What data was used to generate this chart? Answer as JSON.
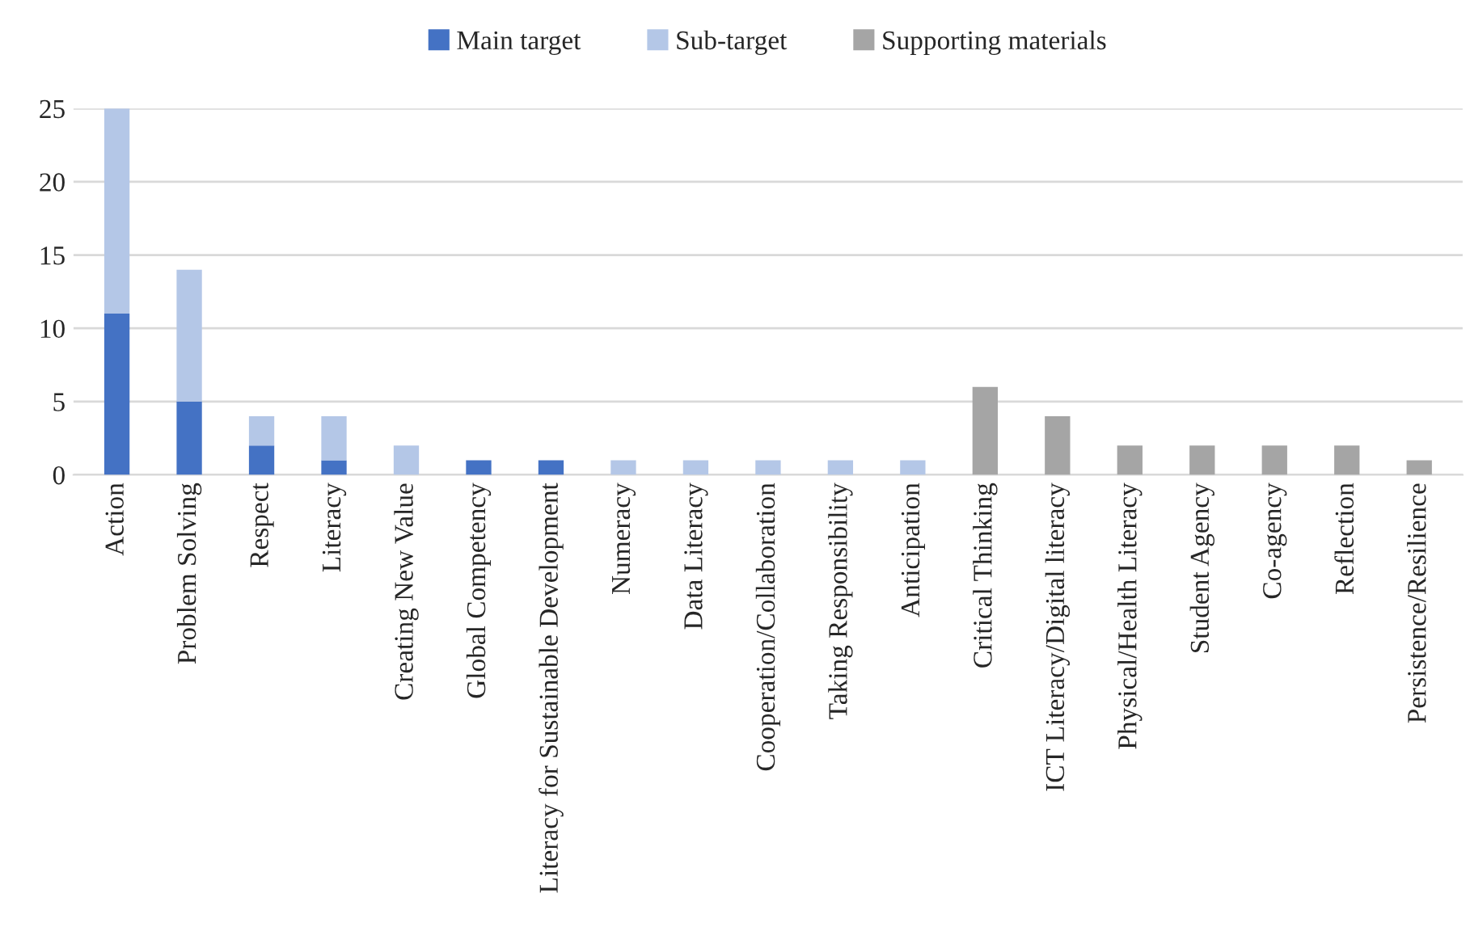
{
  "chart_data": {
    "type": "bar",
    "stacked": true,
    "categories": [
      "Action",
      "Problem Solving",
      "Respect",
      "Literacy",
      "Creating New Value",
      "Global Competency",
      "Literacy for Sustainable Development",
      "Numeracy",
      "Data Literacy",
      "Cooperation/Collaboration",
      "Taking Responsibility",
      "Anticipation",
      "Critical Thinking",
      "ICT Literacy/Digital literacy",
      "Physical/Health Literacy",
      "Student Agency",
      "Co-agency",
      "Reflection",
      "Persistence/Resilience"
    ],
    "series": [
      {
        "name": "Main target",
        "color": "#4472c4",
        "values": [
          11,
          5,
          2,
          1,
          0,
          1,
          1,
          0,
          0,
          0,
          0,
          0,
          0,
          0,
          0,
          0,
          0,
          0,
          0
        ]
      },
      {
        "name": "Sub-target",
        "color": "#b4c7e7",
        "values": [
          14,
          9,
          2,
          3,
          2,
          0,
          0,
          1,
          1,
          1,
          1,
          1,
          0,
          0,
          0,
          0,
          0,
          0,
          0
        ]
      },
      {
        "name": "Supporting materials",
        "color": "#a5a5a5",
        "values": [
          0,
          0,
          0,
          0,
          0,
          0,
          0,
          0,
          0,
          0,
          0,
          0,
          6,
          4,
          2,
          2,
          2,
          2,
          1
        ]
      }
    ],
    "ylim": [
      0,
      25
    ],
    "yticks": [
      0,
      5,
      10,
      15,
      20,
      25
    ],
    "grid": "y",
    "legend": "top"
  }
}
